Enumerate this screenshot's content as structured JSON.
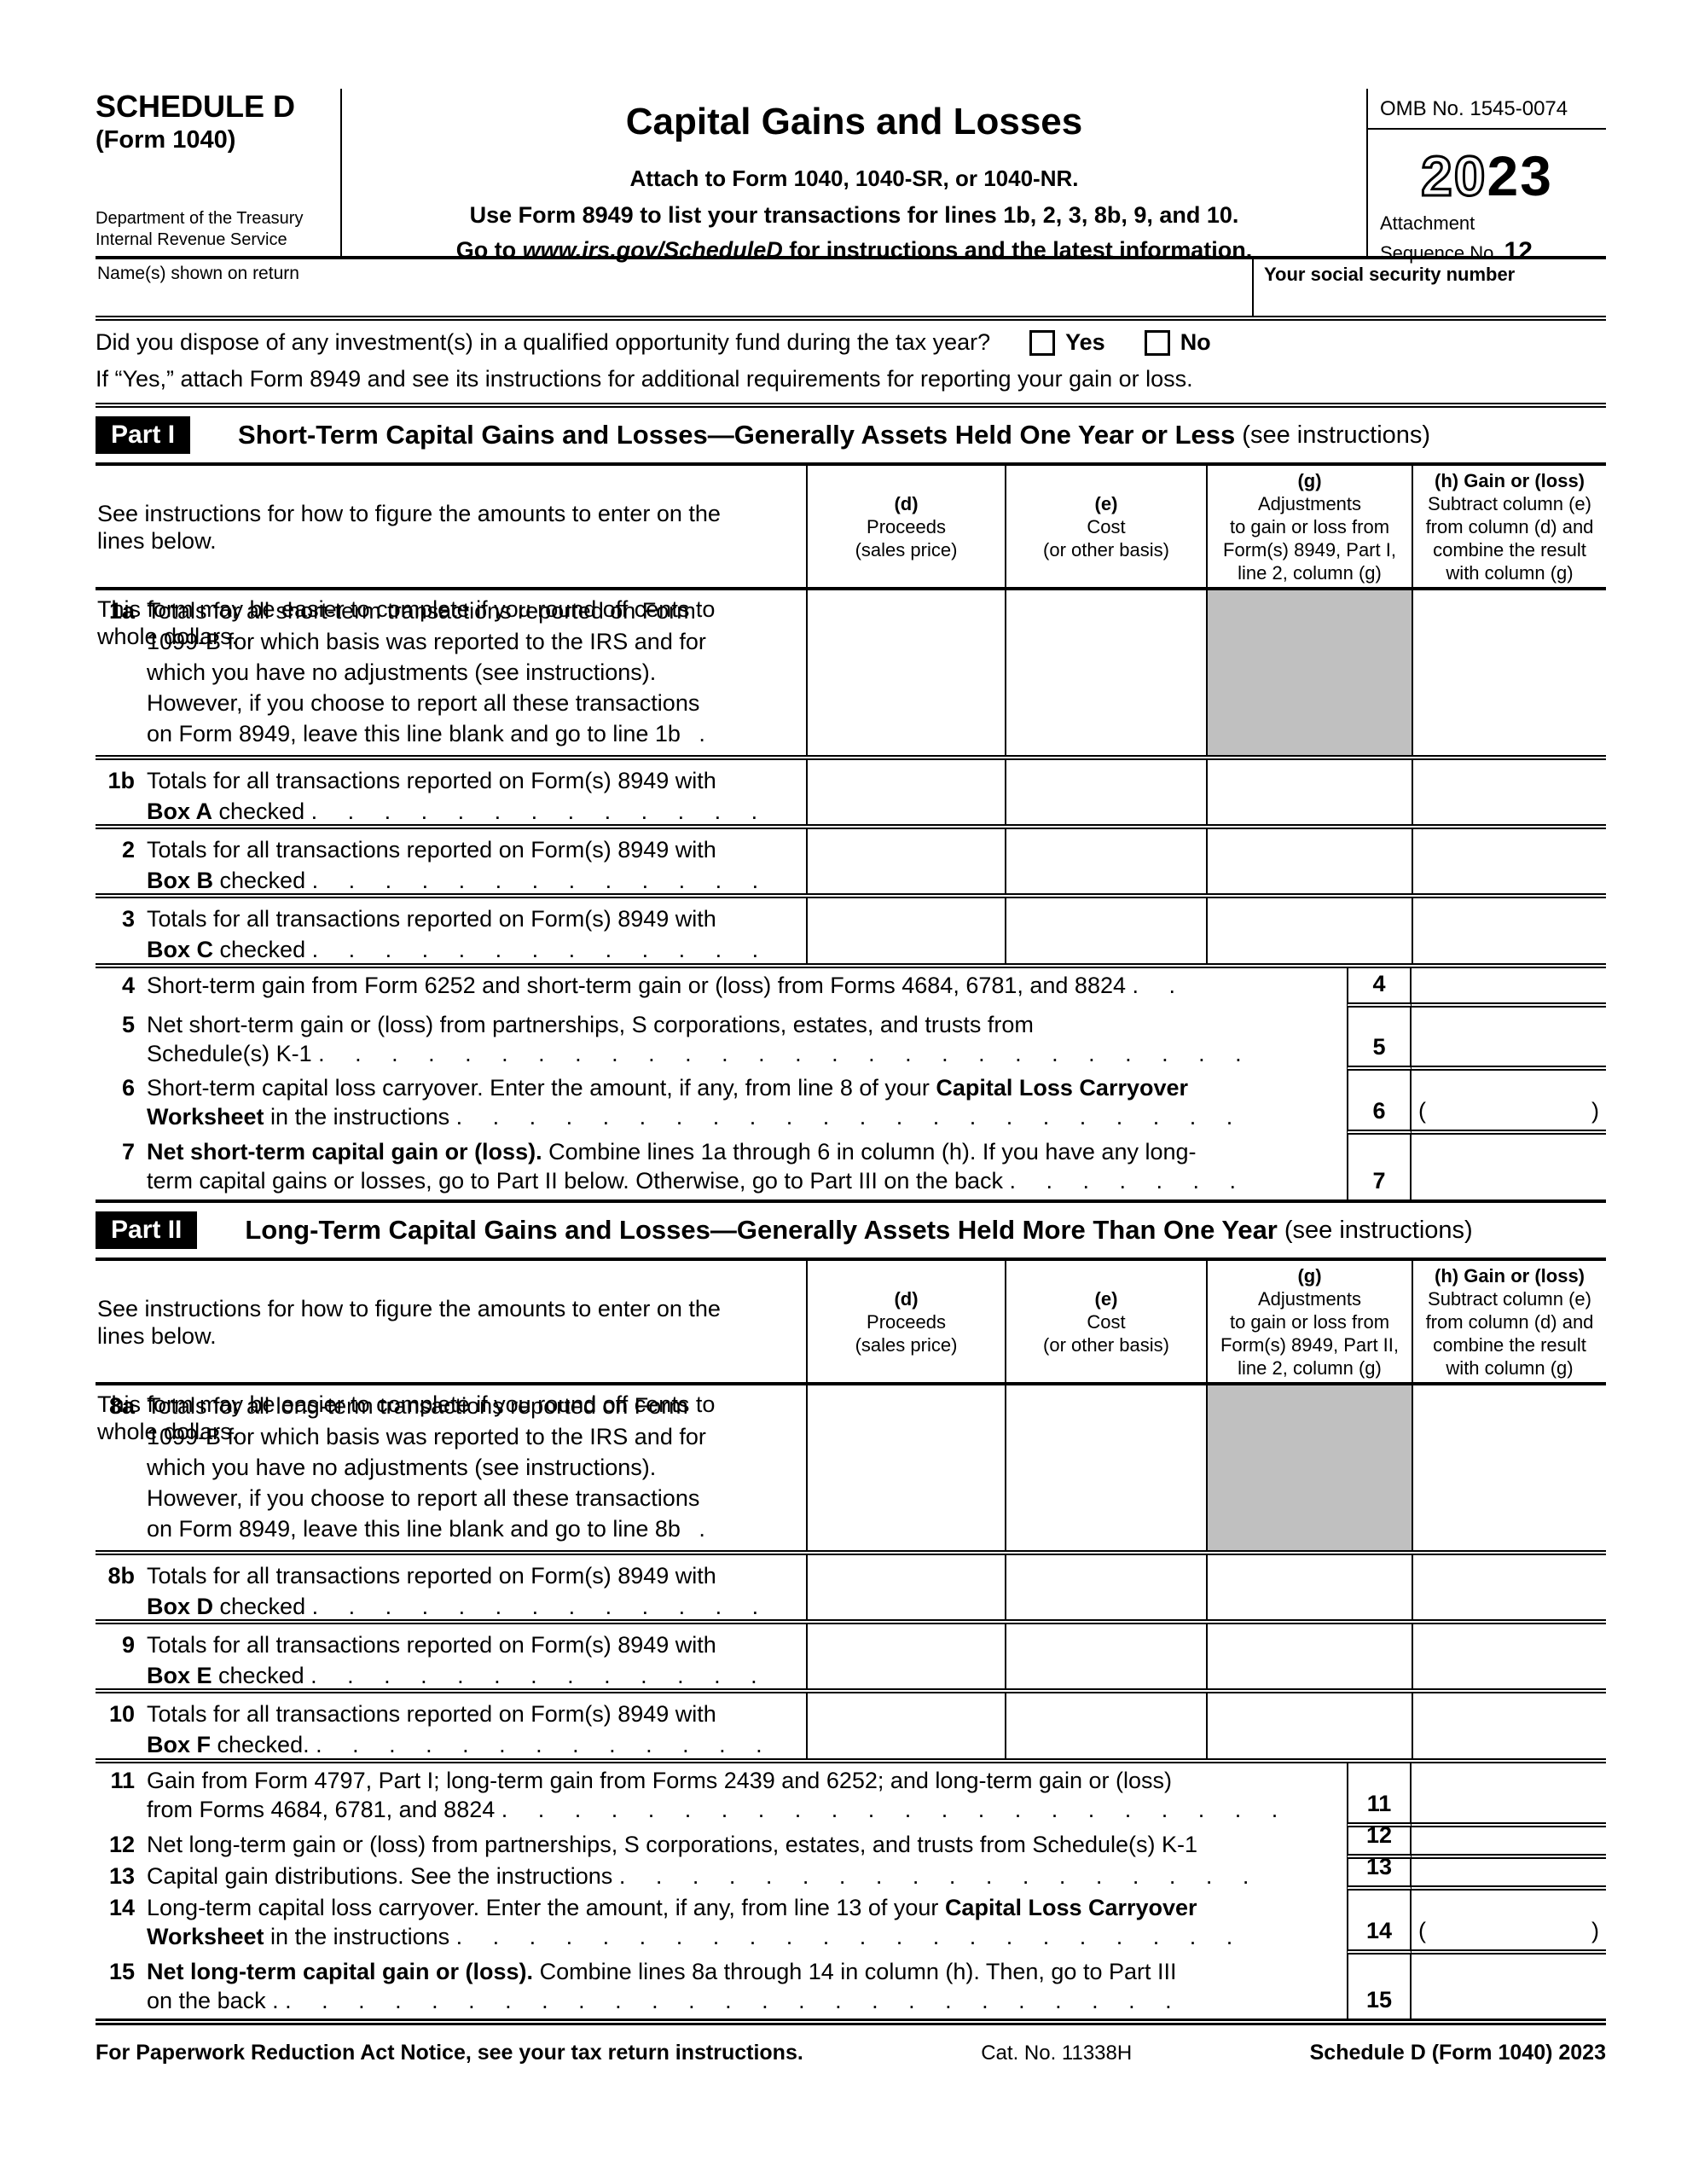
{
  "colors": {
    "shaded_cell": "#c0c0c0",
    "ink": "#000000"
  },
  "form": {
    "schedule_label": "SCHEDULE D",
    "form_label": "(Form 1040)",
    "dept1": "Department of the Treasury",
    "dept2": "Internal Revenue Service",
    "title": "Capital Gains and Losses",
    "attach_note": "Attach to Form 1040, 1040-SR, or 1040-NR.",
    "use_note": "Use Form 8949 to list your transactions for lines 1b, 2, 3, 8b, 9, and 10.",
    "goto_pre": "Go to ",
    "goto_url": "www.irs.gov/ScheduleD",
    "goto_post": " for instructions and the latest information.",
    "omb": "OMB No. 1545-0074",
    "year_outline": "20",
    "year_solid": "23",
    "attachment_label": "Attachment",
    "sequence_label": "Sequence No. ",
    "sequence_value": "12",
    "name_label": "Name(s) shown on return",
    "ssn_label": "Your social security number",
    "footer_notice": "For Paperwork Reduction Act Notice, see your tax return instructions.",
    "footer_cat": "Cat. No. 11338H",
    "footer_form": "Schedule D (Form 1040) 2023"
  },
  "qof": {
    "question": "Did you dispose of any investment(s) in a qualified opportunity fund during the tax year?",
    "yes_label": "Yes",
    "no_label": "No",
    "note": "If “Yes,” attach Form 8949 and see its instructions for additional requirements for reporting your gain or loss."
  },
  "part1": {
    "badge": "Part I",
    "title": "Short-Term Capital Gains and Losses—Generally Assets Held One Year or Less",
    "see": "(see instructions)",
    "intro1": "See instructions for how to figure the amounts to enter on the\nlines below.",
    "intro2": "This form may be easier to complete if you round off cents to\nwhole dollars.",
    "col_d_tag": "(d)",
    "col_d_text": "Proceeds\n(sales price)",
    "col_e_tag": "(e)",
    "col_e_text": "Cost\n(or other basis)",
    "col_g_tag": "(g)",
    "col_g_text": "Adjustments\nto gain or loss from\nForm(s) 8949, Part I,\nline 2, column (g)",
    "col_h_tag": "(h) Gain or (loss)",
    "col_h_text": "Subtract column (e)\nfrom column (d) and\ncombine the result\nwith column (g)",
    "rows": {
      "r1a": {
        "num": "1a",
        "text": "Totals for all short-term transactions reported on Form\n1099-B for which basis was reported to the IRS and for\nwhich you have no adjustments (see instructions).\nHowever, if you choose to report all these transactions\non Form 8949, leave this line blank and go to line 1b",
        "dots": " ."
      },
      "r1b": {
        "num": "1b",
        "pre": "Totals for all transactions reported on Form(s) 8949 with\n",
        "box": "Box A",
        "post": " checked ",
        "dots": ". . . . . . . . . . . . ."
      },
      "r2": {
        "num": "2",
        "pre": "Totals for all transactions reported on Form(s) 8949 with\n",
        "box": "Box B",
        "post": " checked ",
        "dots": ". . . . . . . . . . . . ."
      },
      "r3": {
        "num": "3",
        "pre": "Totals for all transactions reported on Form(s) 8949 with\n",
        "box": "Box C",
        "post": " checked ",
        "dots": ". . . . . . . . . . . . ."
      },
      "r4": {
        "num": "4",
        "line": "4",
        "text": "Short-term gain from Form 6252 and short-term gain or (loss) from Forms 4684, 6781, and 8824 ",
        "dots": ". ."
      },
      "r5": {
        "num": "5",
        "line": "5",
        "text": "Net short-term gain or (loss) from partnerships, S corporations, estates, and trusts from\nSchedule(s) K-1 ",
        "dots": ". . . . . . . . . . . . . . . . . . . . . . . . . ."
      },
      "r6": {
        "num": "6",
        "line": "6",
        "pre": "Short-term capital loss carryover. Enter the amount, if any, from line 8 of your ",
        "box": "Capital Loss Carryover\nWorksheet",
        "post": " in the instructions ",
        "dots": ". . . . . . . . . . . . . . . . . . . . . .",
        "open": "(",
        "close": ")"
      },
      "r7": {
        "num": "7",
        "line": "7",
        "lead": "Net short-term capital gain or (loss).",
        "text": " Combine lines 1a through 6 in column (h). If you have any long-\nterm capital gains or losses, go to Part II below. Otherwise, go to Part III on the back ",
        "dots": ". . . . . . ."
      }
    }
  },
  "part2": {
    "badge": "Part II",
    "title": "Long-Term Capital Gains and Losses—Generally Assets Held More Than One Year",
    "see": "(see instructions)",
    "intro1": "See instructions for how to figure the amounts to enter on the\nlines below.",
    "intro2": "This form may be easier to complete if you round off cents to\nwhole dollars.",
    "col_d_tag": "(d)",
    "col_d_text": "Proceeds\n(sales price)",
    "col_e_tag": "(e)",
    "col_e_text": "Cost\n(or other basis)",
    "col_g_tag": "(g)",
    "col_g_text": "Adjustments\nto gain or loss from\nForm(s) 8949, Part II,\nline 2, column (g)",
    "col_h_tag": "(h) Gain or (loss)",
    "col_h_text": "Subtract column (e)\nfrom column (d) and\ncombine the result\nwith column (g)",
    "rows": {
      "r8a": {
        "num": "8a",
        "text": "Totals for all long-term transactions reported on Form\n1099-B for which basis was reported to the IRS and for\nwhich you have no adjustments (see instructions).\nHowever, if you choose to report all these transactions\non Form 8949, leave this line blank and go to line 8b",
        "dots": " ."
      },
      "r8b": {
        "num": "8b",
        "pre": "Totals for all transactions reported on Form(s) 8949 with\n",
        "box": "Box D",
        "post": " checked ",
        "dots": ". . . . . . . . . . . . ."
      },
      "r9": {
        "num": "9",
        "pre": "Totals for all transactions reported on Form(s) 8949 with\n",
        "box": "Box E",
        "post": " checked ",
        "dots": ". . . . . . . . . . . . ."
      },
      "r10": {
        "num": "10",
        "pre": "Totals for all transactions reported on Form(s) 8949 with\n",
        "box": "Box F",
        "post": " checked. ",
        "dots": ". . . . . . . . . . . . ."
      },
      "r11": {
        "num": "11",
        "line": "11",
        "text": "Gain from Form 4797, Part I; long-term gain from Forms 2439 and 6252; and long-term gain or (loss)\nfrom Forms 4684, 6781, and 8824 ",
        "dots": ". . . . . . . . . . . . . . . . . . . . . ."
      },
      "r12": {
        "num": "12",
        "line": "12",
        "text": "Net long-term gain or (loss) from partnerships, S corporations, estates, and trusts from Schedule(s) K-1"
      },
      "r13": {
        "num": "13",
        "line": "13",
        "text": "Capital gain distributions. See the instructions ",
        "dots": ". . . . . . . . . . . . . . . . . ."
      },
      "r14": {
        "num": "14",
        "line": "14",
        "pre": "Long-term capital loss carryover. Enter the amount, if any, from line 13 of your ",
        "box": "Capital Loss Carryover\nWorksheet",
        "post": " in the instructions ",
        "dots": ". . . . . . . . . . . . . . . . . . . . . .",
        "open": "(",
        "close": ")"
      },
      "r15": {
        "num": "15",
        "line": "15",
        "lead": "Net long-term capital gain or (loss).",
        "text": " Combine lines 8a through 14 in column (h). Then, go to Part III\non the back . ",
        "dots": ". . . . . . . . . . . . . . . . . . . . . . . . ."
      }
    }
  }
}
